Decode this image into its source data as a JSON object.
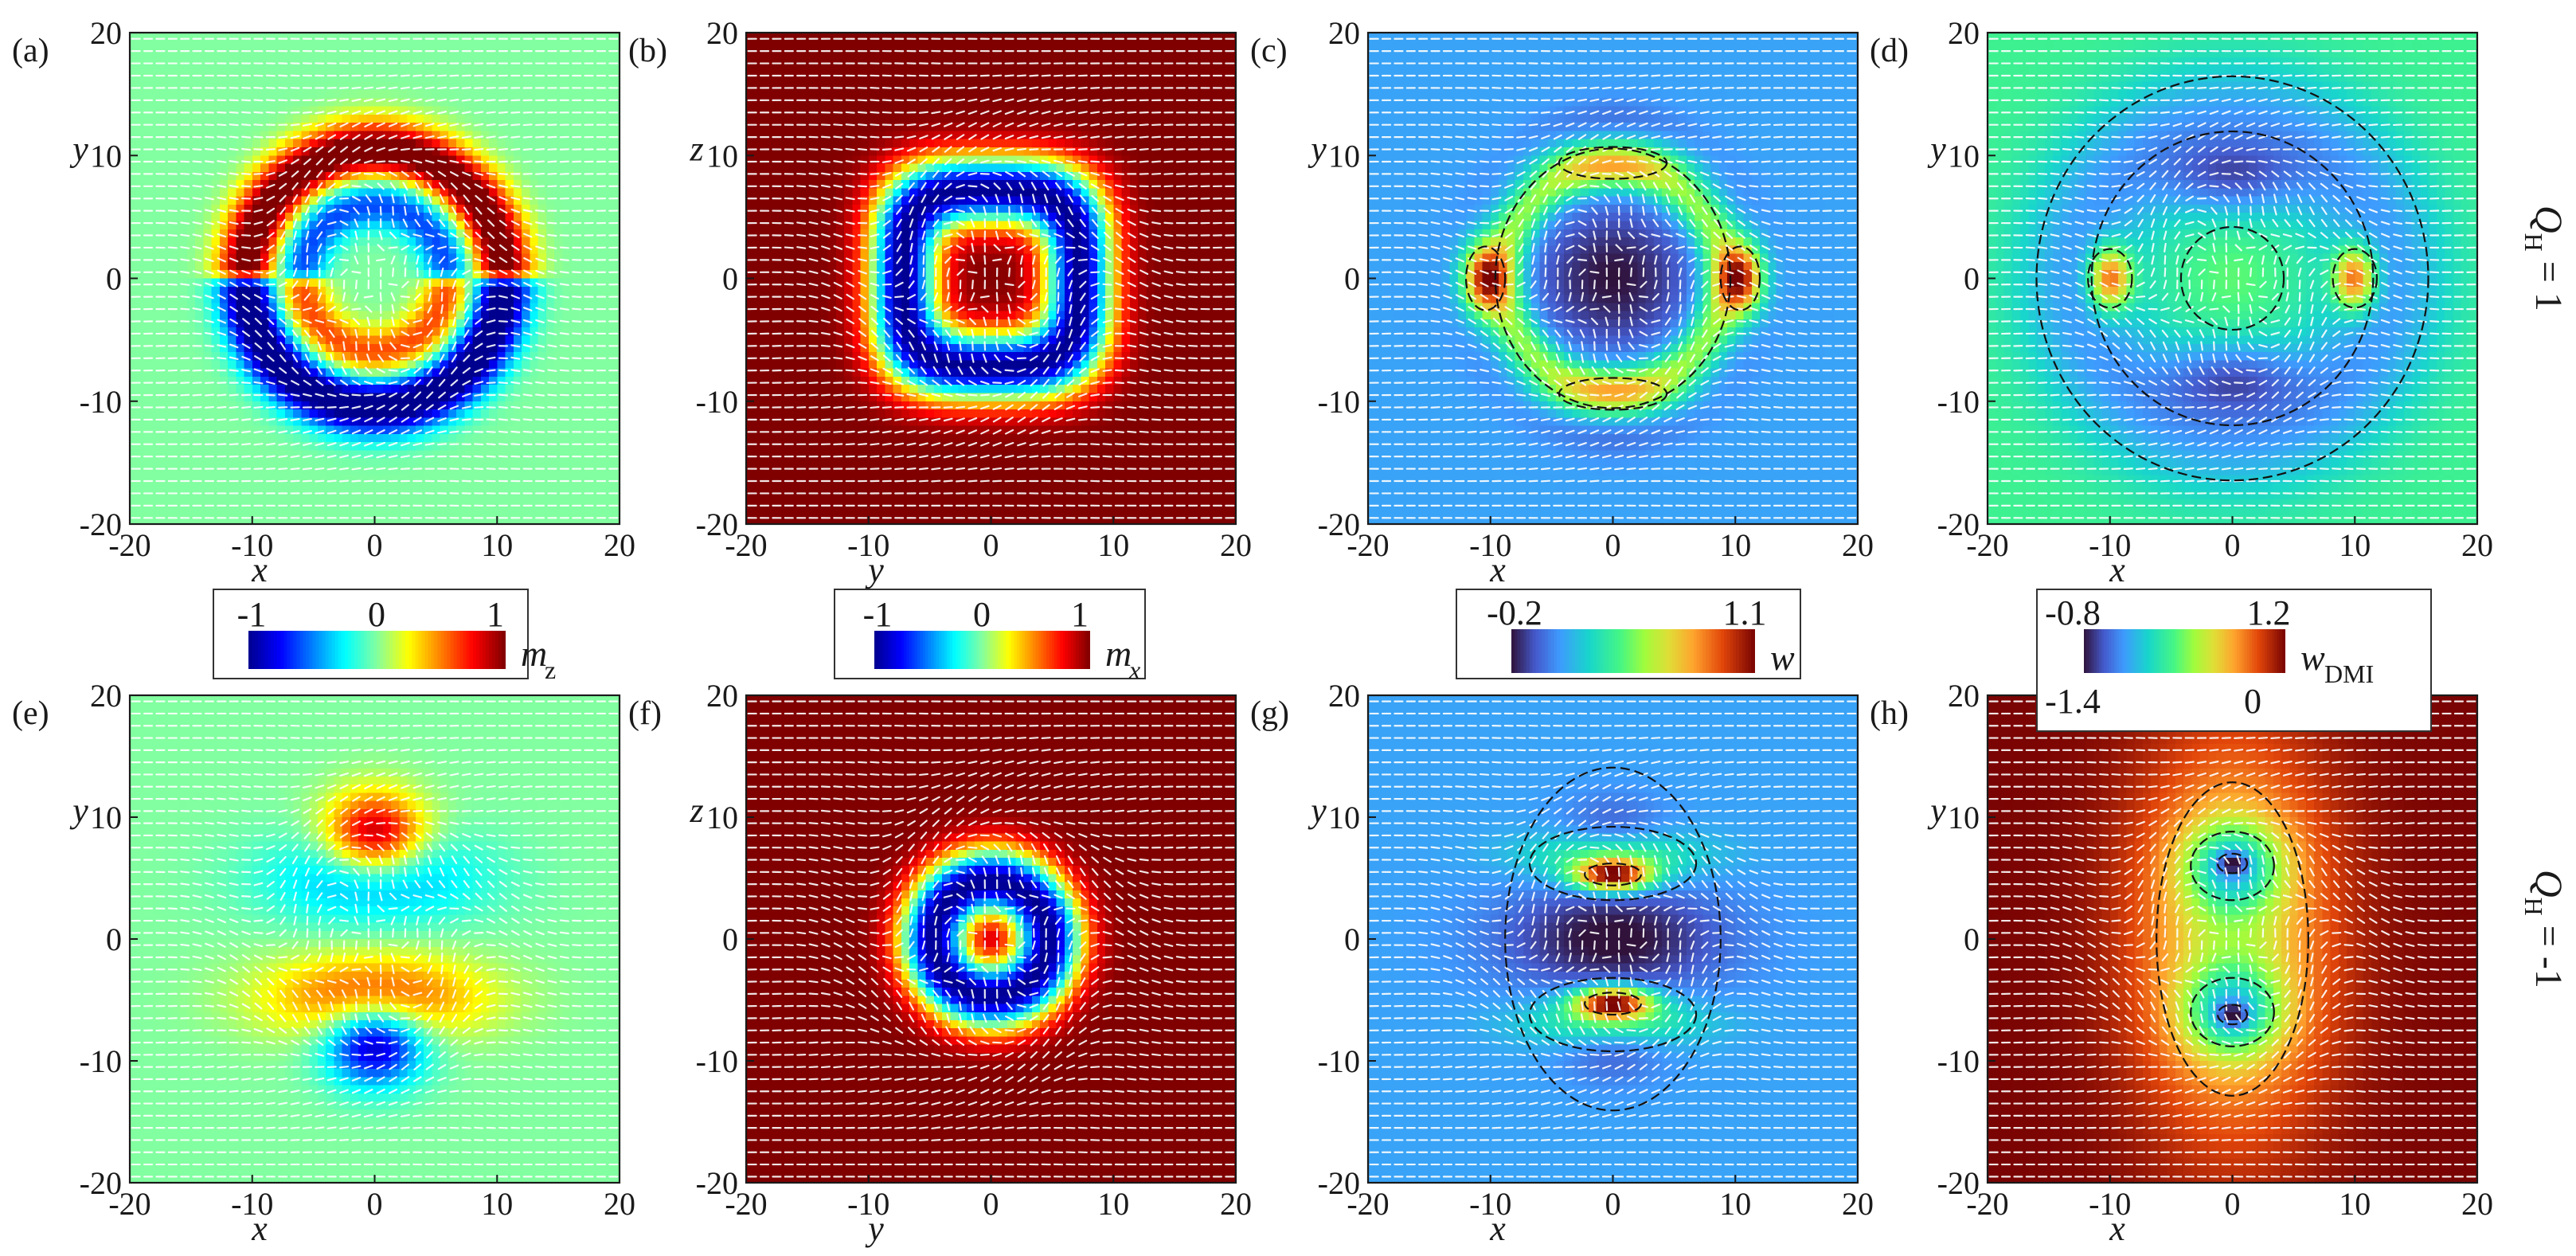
{
  "figure": {
    "row_labels": [
      {
        "text": "Q = 1",
        "sub": "H",
        "main": "Q",
        "rest": " = 1"
      },
      {
        "text": "Q = -1",
        "sub": "H",
        "main": "Q",
        "rest": " = -1"
      }
    ]
  },
  "chart_data": [
    {
      "id": "a",
      "type": "heatmap",
      "label": "(a)",
      "field": "mz_qh1",
      "xlabel": "x",
      "ylabel": "y",
      "xlim": [
        -20,
        20
      ],
      "ylim": [
        -20,
        20
      ],
      "xticks": [
        "-20",
        "-10",
        "0",
        "10",
        "20"
      ],
      "yticks": [
        "-20",
        "-10",
        "0",
        "10",
        "20"
      ],
      "colormap": "jet",
      "range": [
        -1,
        1
      ],
      "contours": false
    },
    {
      "id": "b",
      "type": "heatmap",
      "label": "(b)",
      "field": "mx_qh1",
      "xlabel": "y",
      "ylabel": "z",
      "xlim": [
        -20,
        20
      ],
      "ylim": [
        -20,
        20
      ],
      "xticks": [
        "-20",
        "-10",
        "0",
        "10",
        "20"
      ],
      "yticks": [
        "-20",
        "-10",
        "0",
        "10",
        "20"
      ],
      "colormap": "jet",
      "range": [
        -1,
        1
      ],
      "contours": false
    },
    {
      "id": "c",
      "type": "heatmap",
      "label": "(c)",
      "field": "w_qh1",
      "xlabel": "x",
      "ylabel": "y",
      "xlim": [
        -20,
        20
      ],
      "ylim": [
        -20,
        20
      ],
      "xticks": [
        "-20",
        "-10",
        "0",
        "10",
        "20"
      ],
      "yticks": [
        "-20",
        "-10",
        "0",
        "10",
        "20"
      ],
      "colormap": "turbo",
      "range": [
        -0.2,
        1.1
      ],
      "contours": true
    },
    {
      "id": "d",
      "type": "heatmap",
      "label": "(d)",
      "field": "wdmi_qh1",
      "xlabel": "x",
      "ylabel": "y",
      "xlim": [
        -20,
        20
      ],
      "ylim": [
        -20,
        20
      ],
      "xticks": [
        "-20",
        "-10",
        "0",
        "10",
        "20"
      ],
      "yticks": [
        "-20",
        "-10",
        "0",
        "10",
        "20"
      ],
      "colormap": "turbo",
      "range": [
        -0.8,
        1.2
      ],
      "contours": true
    },
    {
      "id": "e",
      "type": "heatmap",
      "label": "(e)",
      "field": "mz_qhm1",
      "xlabel": "x",
      "ylabel": "y",
      "xlim": [
        -20,
        20
      ],
      "ylim": [
        -20,
        20
      ],
      "xticks": [
        "-20",
        "-10",
        "0",
        "10",
        "20"
      ],
      "yticks": [
        "-20",
        "-10",
        "0",
        "10",
        "20"
      ],
      "colormap": "jet",
      "range": [
        -1,
        1
      ],
      "contours": false
    },
    {
      "id": "f",
      "type": "heatmap",
      "label": "(f)",
      "field": "mx_qhm1",
      "xlabel": "y",
      "ylabel": "z",
      "xlim": [
        -20,
        20
      ],
      "ylim": [
        -20,
        20
      ],
      "xticks": [
        "-20",
        "-10",
        "0",
        "10",
        "20"
      ],
      "yticks": [
        "-20",
        "-10",
        "0",
        "10",
        "20"
      ],
      "colormap": "jet",
      "range": [
        -1,
        1
      ],
      "contours": false
    },
    {
      "id": "g",
      "type": "heatmap",
      "label": "(g)",
      "field": "w_qhm1",
      "xlabel": "x",
      "ylabel": "y",
      "xlim": [
        -20,
        20
      ],
      "ylim": [
        -20,
        20
      ],
      "xticks": [
        "-20",
        "-10",
        "0",
        "10",
        "20"
      ],
      "yticks": [
        "-20",
        "-10",
        "0",
        "10",
        "20"
      ],
      "colormap": "turbo",
      "range": [
        -0.2,
        1.1
      ],
      "contours": true
    },
    {
      "id": "h",
      "type": "heatmap",
      "label": "(h)",
      "field": "wdmi_qhm1",
      "xlabel": "x",
      "ylabel": "y",
      "xlim": [
        -20,
        20
      ],
      "ylim": [
        -20,
        20
      ],
      "xticks": [
        "-20",
        "-10",
        "0",
        "10",
        "20"
      ],
      "yticks": [
        "-20",
        "-10",
        "0",
        "10",
        "20"
      ],
      "colormap": "turbo",
      "range": [
        -1.4,
        0
      ],
      "contours": true
    }
  ],
  "colorbars": [
    {
      "id": "cb-mz",
      "quantity": "m",
      "subscript": "z",
      "sub_italic": false,
      "min_label": "-1",
      "mid_label": "0",
      "max_label": "1",
      "colormap": "jet"
    },
    {
      "id": "cb-mx",
      "quantity": "m",
      "subscript": "x",
      "sub_italic": true,
      "min_label": "-1",
      "mid_label": "0",
      "max_label": "1",
      "colormap": "jet"
    },
    {
      "id": "cb-w",
      "quantity": "w",
      "subscript": "",
      "sub_italic": false,
      "min_label": "-0.2",
      "max_label": "1.1",
      "colormap": "turbo"
    },
    {
      "id": "cb-wdmi",
      "quantity": "w",
      "subscript": "DMI",
      "sub_italic": false,
      "top_min_label": "-0.8",
      "top_max_label": "1.2",
      "bottom_min_label": "-1.4",
      "bottom_max_label": "0",
      "colormap": "turbo"
    }
  ],
  "colors": {
    "background": "#ffffff",
    "frame": "#1a1a1a",
    "arrows": "#ffffff",
    "contours": "#111111"
  }
}
